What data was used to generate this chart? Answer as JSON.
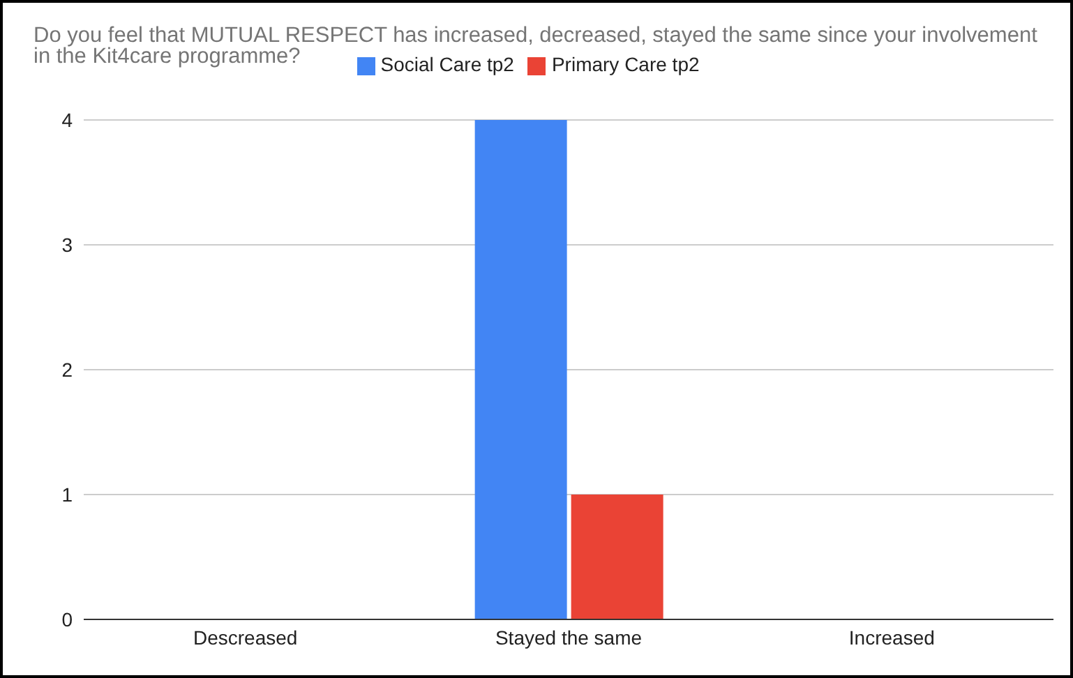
{
  "chart_data": {
    "type": "bar",
    "title": "Do you feel that MUTUAL RESPECT has increased, decreased, stayed the same since your involvement in the Kit4care programme?",
    "categories": [
      "Descreased",
      "Stayed the same",
      "Increased"
    ],
    "series": [
      {
        "name": "Social Care tp2",
        "color": "#4285f4",
        "values": [
          0,
          4,
          0
        ]
      },
      {
        "name": "Primary Care tp2",
        "color": "#ea4335",
        "values": [
          0,
          1,
          0
        ]
      }
    ],
    "ylim": [
      0,
      4
    ],
    "yticks": [
      0,
      1,
      2,
      3,
      4
    ],
    "grid": "y",
    "legend": "top"
  }
}
